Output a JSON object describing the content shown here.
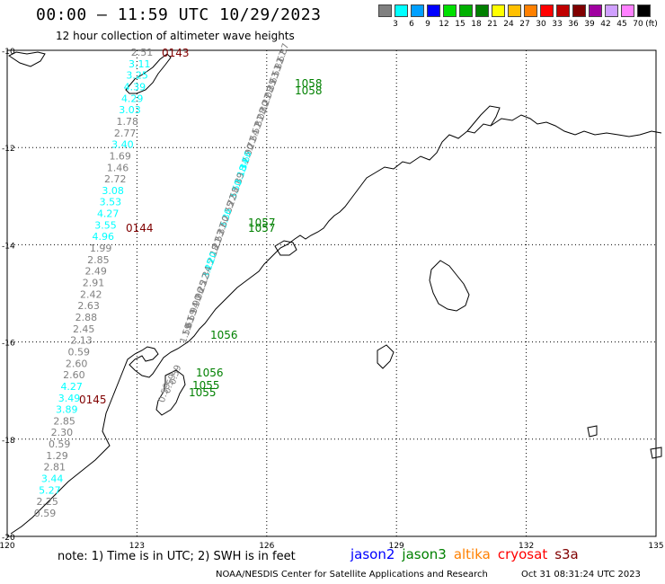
{
  "header": {
    "title": "00:00 – 11:59 UTC 10/29/2023",
    "subtitle": "12 hour collection of altimeter wave heights"
  },
  "legend": {
    "unit": "(ft)",
    "bins": [
      {
        "label": "3",
        "color": "#808080"
      },
      {
        "label": "6",
        "color": "#00ffff"
      },
      {
        "label": "9",
        "color": "#00a0ff"
      },
      {
        "label": "12",
        "color": "#0000ff"
      },
      {
        "label": "15",
        "color": "#00e000"
      },
      {
        "label": "18",
        "color": "#00b000"
      },
      {
        "label": "21",
        "color": "#008000"
      },
      {
        "label": "24",
        "color": "#ffff00"
      },
      {
        "label": "27",
        "color": "#ffc000"
      },
      {
        "label": "30",
        "color": "#ff8000"
      },
      {
        "label": "33",
        "color": "#ff0000"
      },
      {
        "label": "36",
        "color": "#c00000"
      },
      {
        "label": "39",
        "color": "#800000"
      },
      {
        "label": "42",
        "color": "#a000a0"
      },
      {
        "label": "45",
        "color": "#d0a0ff"
      },
      {
        "label": "70",
        "color": "#ff80ff"
      },
      {
        "label": "",
        "color": "#000000"
      }
    ]
  },
  "axes": {
    "lat_labels": [
      "-10",
      "-12",
      "-14",
      "-16",
      "-18",
      "-20"
    ],
    "lon_labels": [
      "120",
      "123",
      "126",
      "129",
      "132",
      "135"
    ],
    "lat_range": [
      -20,
      -10
    ],
    "lon_range": [
      120,
      135
    ]
  },
  "colors": {
    "gray": "#808080",
    "cyan": "#00ffff",
    "green": "#008000",
    "darkred": "#800000",
    "grid": "#000000",
    "coast": "#000000"
  },
  "track_west": {
    "values": [
      {
        "t": "2.51",
        "c": "gray"
      },
      {
        "t": "3.11",
        "c": "cyan"
      },
      {
        "t": "3.25",
        "c": "cyan"
      },
      {
        "t": "4.39",
        "c": "cyan"
      },
      {
        "t": "4.29",
        "c": "cyan"
      },
      {
        "t": "3.03",
        "c": "cyan"
      },
      {
        "t": "1.78",
        "c": "gray"
      },
      {
        "t": "2.77",
        "c": "gray"
      },
      {
        "t": "3.40",
        "c": "cyan"
      },
      {
        "t": "1.69",
        "c": "gray"
      },
      {
        "t": "1.46",
        "c": "gray"
      },
      {
        "t": "2.72",
        "c": "gray"
      },
      {
        "t": "3.08",
        "c": "cyan"
      },
      {
        "t": "3.53",
        "c": "cyan"
      },
      {
        "t": "4.27",
        "c": "cyan"
      },
      {
        "t": "3.55",
        "c": "cyan"
      },
      {
        "t": "4.96",
        "c": "cyan"
      },
      {
        "t": "1.99",
        "c": "gray"
      },
      {
        "t": "2.85",
        "c": "gray"
      },
      {
        "t": "2.49",
        "c": "gray"
      },
      {
        "t": "2.91",
        "c": "gray"
      },
      {
        "t": "2.42",
        "c": "gray"
      },
      {
        "t": "2.63",
        "c": "gray"
      },
      {
        "t": "2.88",
        "c": "gray"
      },
      {
        "t": "2.45",
        "c": "gray"
      },
      {
        "t": "2.13",
        "c": "gray"
      },
      {
        "t": "0.59",
        "c": "gray"
      },
      {
        "t": "2.60",
        "c": "gray"
      },
      {
        "t": "2.60",
        "c": "gray"
      },
      {
        "t": "4.27",
        "c": "cyan"
      },
      {
        "t": "3.49",
        "c": "cyan"
      },
      {
        "t": "3.89",
        "c": "cyan"
      },
      {
        "t": "2.85",
        "c": "gray"
      },
      {
        "t": "2.30",
        "c": "gray"
      },
      {
        "t": "0.59",
        "c": "gray"
      },
      {
        "t": "1.29",
        "c": "gray"
      },
      {
        "t": "2.81",
        "c": "gray"
      },
      {
        "t": "3.44",
        "c": "cyan"
      },
      {
        "t": "5.27",
        "c": "cyan"
      },
      {
        "t": "2.25",
        "c": "gray"
      },
      {
        "t": "0.59",
        "c": "gray"
      }
    ]
  },
  "track_east": {
    "values": [
      {
        "t": "1.87",
        "c": "gray"
      },
      {
        "t": "1.67",
        "c": "gray"
      },
      {
        "t": "1.82",
        "c": "gray"
      },
      {
        "t": "2.53",
        "c": "gray"
      },
      {
        "t": "2.63",
        "c": "gray"
      },
      {
        "t": "2.35",
        "c": "gray"
      },
      {
        "t": "2.08",
        "c": "gray"
      },
      {
        "t": "2.27",
        "c": "gray"
      },
      {
        "t": "2.30",
        "c": "gray"
      },
      {
        "t": "2.08",
        "c": "gray"
      },
      {
        "t": "1.81",
        "c": "gray"
      },
      {
        "t": "2.57",
        "c": "gray"
      },
      {
        "t": "2.54",
        "c": "gray"
      },
      {
        "t": "2.71",
        "c": "gray"
      },
      {
        "t": "2.90",
        "c": "gray"
      },
      {
        "t": "3.66",
        "c": "cyan"
      },
      {
        "t": "3.34",
        "c": "cyan"
      },
      {
        "t": "3.18",
        "c": "cyan"
      },
      {
        "t": "2.89",
        "c": "gray"
      },
      {
        "t": "3.50",
        "c": "cyan"
      },
      {
        "t": "2.58",
        "c": "gray"
      },
      {
        "t": "2.72",
        "c": "gray"
      },
      {
        "t": "2.55",
        "c": "gray"
      },
      {
        "t": "3.36",
        "c": "cyan"
      },
      {
        "t": "2.60",
        "c": "gray"
      },
      {
        "t": "2.37",
        "c": "gray"
      },
      {
        "t": "2.53",
        "c": "gray"
      },
      {
        "t": "2.21",
        "c": "gray"
      },
      {
        "t": "2.18",
        "c": "gray"
      },
      {
        "t": "4.20",
        "c": "cyan"
      },
      {
        "t": "3.25",
        "c": "cyan"
      },
      {
        "t": "2.34",
        "c": "gray"
      },
      {
        "t": "2.12",
        "c": "gray"
      },
      {
        "t": "2.25",
        "c": "gray"
      },
      {
        "t": "1.96",
        "c": "gray"
      },
      {
        "t": "1.90",
        "c": "gray"
      },
      {
        "t": "1.94",
        "c": "gray"
      },
      {
        "t": "0.59",
        "c": "gray"
      },
      {
        "t": "1.61",
        "c": "gray"
      },
      {
        "t": "1.59",
        "c": "gray"
      }
    ]
  },
  "track_south": {
    "values": [
      {
        "t": "0.59",
        "c": "gray"
      },
      {
        "t": "0.59",
        "c": "gray"
      },
      {
        "t": "0.59",
        "c": "gray"
      }
    ]
  },
  "time_labels_west": [
    "0143",
    "0144",
    "0145"
  ],
  "time_labels_east": [
    "1058",
    "1058",
    "1057",
    "1057",
    "1056",
    "1056",
    "1055",
    "1055"
  ],
  "footer": {
    "note": "note: 1) Time is in UTC; 2) SWH is in feet",
    "satellites": [
      {
        "name": "jason2",
        "color": "#0000ff"
      },
      {
        "name": "jason3",
        "color": "#008000"
      },
      {
        "name": "altika",
        "color": "#ff8000"
      },
      {
        "name": "cryosat",
        "color": "#ff0000"
      },
      {
        "name": "s3a",
        "color": "#800000"
      }
    ],
    "credit": "NOAA/NESDIS Center for Satellite Applications and Research",
    "timestamp": "Oct 31 08:31:24 UTC 2023"
  }
}
